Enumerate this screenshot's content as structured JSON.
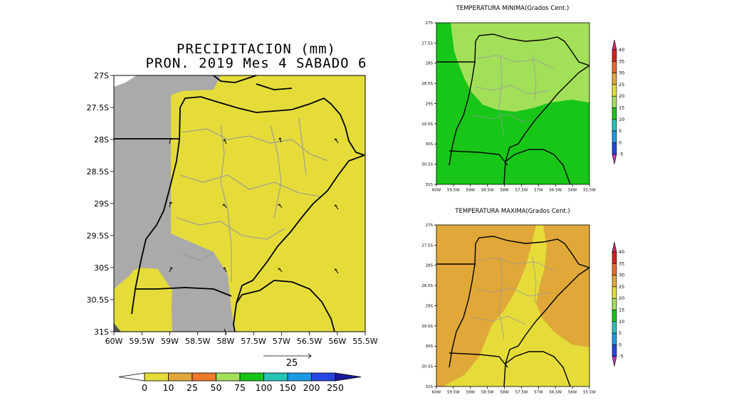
{
  "main_map": {
    "title_line1": "PRECIPITACION (mm)",
    "title_line2": "PRON. 2019 Mes 4 SABADO 6",
    "lat_labels": [
      "27S",
      "27.5S",
      "28S",
      "28.5S",
      "29S",
      "29.5S",
      "30S",
      "30.5S",
      "31S"
    ],
    "lon_labels": [
      "60W",
      "59.5W",
      "59W",
      "58.5W",
      "58W",
      "57.5W",
      "57W",
      "56.5W",
      "56W",
      "55.5W"
    ],
    "vector_reference": "25",
    "colorbar_labels": [
      "0",
      "10",
      "25",
      "50",
      "75",
      "100",
      "150",
      "200",
      "250"
    ],
    "colorbar_colors": [
      "#e5dc3a",
      "#e0a838",
      "#ec7a2a",
      "#a3e05a",
      "#17c617",
      "#25c3b8",
      "#1b9be6",
      "#2646e0"
    ],
    "colors": {
      "dominant": "#e5dc3a",
      "masked": "#aaaaaa",
      "land": "#e5dc3a"
    }
  },
  "tmin_map": {
    "title": "TEMPERATURA MINIMA(Grados Cent.)",
    "lat_labels": [
      "27S",
      "27.5S",
      "28S",
      "28.5S",
      "29S",
      "29.5S",
      "30S",
      "30.5S",
      "31S"
    ],
    "lon_labels": [
      "60W",
      "59.5W",
      "59W",
      "58.5W",
      "58W",
      "57.5W",
      "57W",
      "56.5W",
      "56W",
      "55.5W"
    ],
    "colors": {
      "north": "#a3e05a",
      "south": "#17c617"
    }
  },
  "tmax_map": {
    "title": "TEMPERATURA MAXIMA(Grados Cent.)",
    "lat_labels": [
      "27S",
      "27.5S",
      "28S",
      "28.5S",
      "29S",
      "29.5S",
      "30S",
      "30.5S",
      "31S"
    ],
    "lon_labels": [
      "60W",
      "59.5W",
      "59W",
      "58.5W",
      "58W",
      "57.5W",
      "57W",
      "56.5W",
      "56W",
      "55.5W"
    ],
    "colors": {
      "warm": "#e0a838",
      "mild": "#e5dc3a"
    }
  },
  "temp_colorbar": {
    "labels": [
      "40",
      "35",
      "30",
      "25",
      "20",
      "15",
      "10",
      "5",
      "0",
      "-5"
    ],
    "colors": [
      "#d81f1f",
      "#ec6a2a",
      "#e0a838",
      "#e5dc3a",
      "#a3e05a",
      "#17c617",
      "#25c3b8",
      "#1b9be6",
      "#2646e0",
      "#c030c0"
    ]
  }
}
